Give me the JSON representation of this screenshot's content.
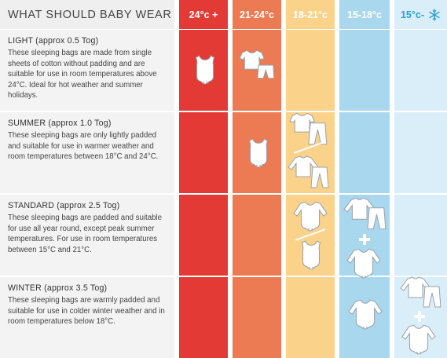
{
  "header": {
    "title": "WHAT SHOULD BABY WEAR",
    "columns": [
      {
        "label": "24°c +",
        "bg": "#e33a36",
        "fg": "#ffffff"
      },
      {
        "label": "21-24°c",
        "bg": "#ec7a52",
        "fg": "#ffffff"
      },
      {
        "label": "18-21°c",
        "bg": "#fbd28a",
        "fg": "#ffffff"
      },
      {
        "label": "15-18°c",
        "bg": "#a9d8ee",
        "fg": "#ffffff"
      },
      {
        "label": "15°c-",
        "bg": "#d9eef9",
        "fg": "#27a0d6"
      }
    ]
  },
  "colors": {
    "col1": "#e33a36",
    "col2": "#ec7a52",
    "col3": "#fbd28a",
    "col4": "#a9d8ee",
    "col5": "#d9eef9"
  },
  "rows": [
    {
      "title": "LIGHT (approx 0.5 Tog)",
      "description": "These sleeping bags are made from single sheets of cotton without padding and are suitable for use in room temperatures above 24°C. Ideal for hot weather and summer holidays."
    },
    {
      "title": "SUMMER (approx 1.0 Tog)",
      "description": "These sleeping bags are only lightly padded and suitable for use in warmer weather and room temperatures between 18°C and 24°C."
    },
    {
      "title": "STANDARD (approx 2.5 Tog)",
      "description": "These sleeping bags are padded and suitable for use all year round, except peak summer temperatures. For use in room temperatures between 15°C and 21°C."
    },
    {
      "title": "WINTER (approx 3.5 Tog)",
      "description": "These sleeping bags are warmly padded and suitable for use in colder winter weather and in room temperatures below 18°C."
    }
  ],
  "icons": {
    "sleeveless": "sleeveless-bodysuit-icon",
    "tshirt_set": "tshirt-and-shorts-icon",
    "longsleeve": "long-sleeve-bodysuit-icon",
    "longsleeve_set": "long-sleeve-top-and-pants-icon",
    "plus": "plus-icon",
    "snowflake": "snowflake-icon"
  }
}
